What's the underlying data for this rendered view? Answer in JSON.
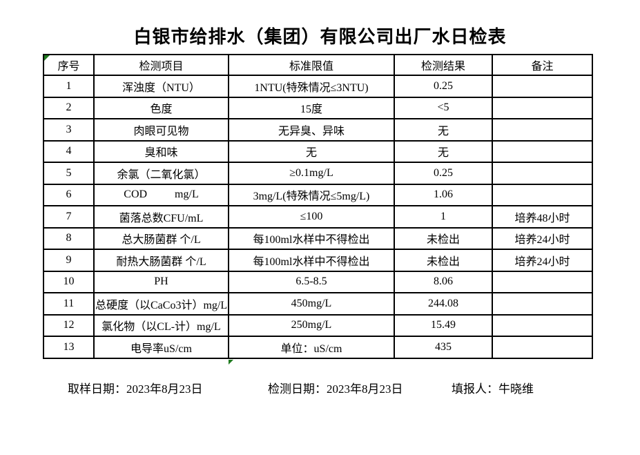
{
  "title": "白银市给排水（集团）有限公司出厂水日检表",
  "table": {
    "headers": [
      "序号",
      "检测项目",
      "标准限值",
      "检测结果",
      "备注"
    ],
    "rows": [
      [
        "1",
        "浑浊度（NTU）",
        "1NTU(特殊情况≤3NTU)",
        "0.25",
        ""
      ],
      [
        "2",
        "色度",
        "15度",
        "<5",
        ""
      ],
      [
        "3",
        "肉眼可见物",
        "无异臭、异味",
        "无",
        ""
      ],
      [
        "4",
        "臭和味",
        "无",
        "无",
        ""
      ],
      [
        "5",
        "余氯（二氧化氯）",
        "≥0.1mg/L",
        "0.25",
        ""
      ],
      [
        "6",
        "COD          mg/L",
        "3mg/L(特殊情况≤5mg/L)",
        "1.06",
        ""
      ],
      [
        "7",
        "菌落总数CFU/mL",
        "≤100",
        "1",
        "培养48小时"
      ],
      [
        "8",
        "总大肠菌群 个/L",
        "每100ml水样中不得检出",
        "未检出",
        "培养24小时"
      ],
      [
        "9",
        "耐热大肠菌群 个/L",
        "每100ml水样中不得检出",
        "未检出",
        "培养24小时"
      ],
      [
        "10",
        "PH",
        "6.5-8.5",
        "8.06",
        ""
      ],
      [
        "11",
        "总硬度（以CaCo3计）mg/L",
        "450mg/L",
        "244.08",
        ""
      ],
      [
        "12",
        "氯化物（以CL-计）mg/L",
        "250mg/L",
        "15.49",
        ""
      ],
      [
        "13",
        "电导率uS/cm",
        "单位：uS/cm",
        "435",
        ""
      ]
    ]
  },
  "footer": {
    "sampling_date": "取样日期：2023年8月23日",
    "test_date": "检测日期：2023年8月23日",
    "reporter": "填报人：牛晓维"
  },
  "icons": {
    "corner_marker": "green-triangle-cell-indicator",
    "handle_marker": "green-triangle-fill-handle"
  },
  "colors": {
    "marker_green": "#1f7a1f",
    "border_black": "#000000",
    "background": "#ffffff",
    "text": "#000000"
  }
}
